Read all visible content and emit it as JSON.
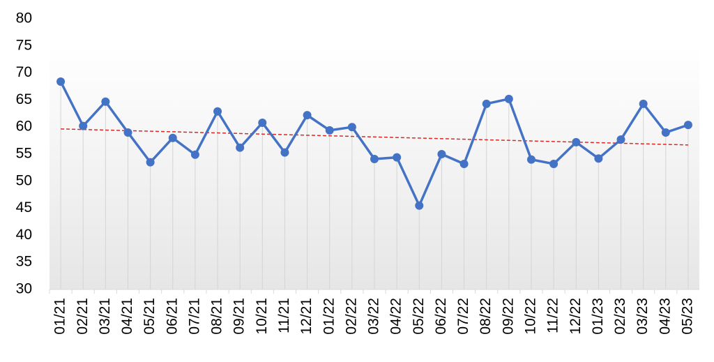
{
  "chart_data": {
    "type": "line",
    "categories": [
      "01/21",
      "02/21",
      "03/21",
      "04/21",
      "05/21",
      "06/21",
      "07/21",
      "08/21",
      "09/21",
      "10/21",
      "11/21",
      "12/21",
      "01/22",
      "02/22",
      "03/22",
      "04/22",
      "05/22",
      "06/22",
      "07/22",
      "08/22",
      "09/22",
      "10/22",
      "11/22",
      "12/22",
      "01/23",
      "02/23",
      "03/23",
      "04/23",
      "05/23"
    ],
    "series": [
      {
        "color": "#4472c4",
        "values": [
          68.4,
          60.2,
          64.7,
          59.0,
          53.5,
          58.0,
          54.9,
          62.9,
          56.2,
          60.8,
          55.3,
          62.2,
          59.4,
          60.0,
          54.1,
          54.4,
          45.5,
          55.0,
          53.2,
          64.3,
          65.2,
          54.0,
          53.2,
          57.2,
          54.2,
          57.7,
          64.3,
          59.0,
          60.4
        ]
      }
    ],
    "trendline": {
      "type": "linear",
      "color": "#e8231f"
    },
    "ylim": [
      30,
      80
    ],
    "yticks": [
      30,
      35,
      40,
      45,
      50,
      55,
      60,
      65,
      70,
      75,
      80
    ],
    "drop_lines": true
  }
}
